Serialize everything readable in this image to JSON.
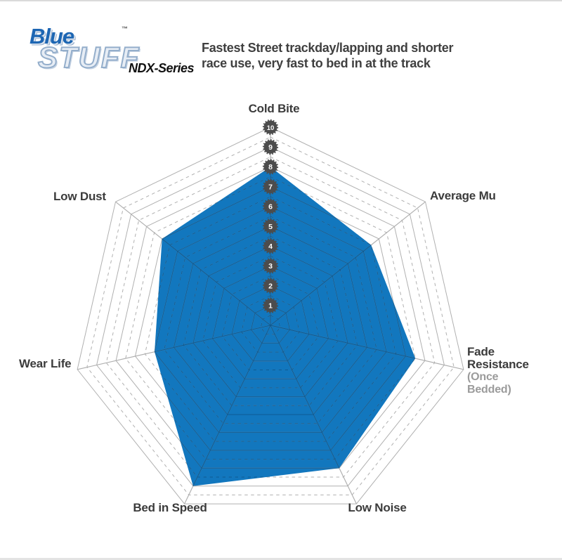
{
  "header": {
    "logo": {
      "word1": "Blue",
      "tm": "™",
      "word2": "STUFF",
      "series": "NDX-Series"
    },
    "description_line1": "Fastest Street trackday/lapping and shorter",
    "description_line2": "race use, very fast to bed in at the track"
  },
  "chart_data": {
    "type": "radar",
    "axes": [
      {
        "label": "Cold Bite",
        "value": 8
      },
      {
        "label": "Average Mu",
        "value": 6.5
      },
      {
        "label": "Fade Resistance",
        "sublabel": "(Once Bedded)",
        "value": 7.5
      },
      {
        "label": "Low Noise",
        "value": 8
      },
      {
        "label": "Bed in Speed",
        "value": 9
      },
      {
        "label": "Wear Life",
        "value": 6
      },
      {
        "label": "Low Dust",
        "value": 7
      }
    ],
    "scale": {
      "min": 0,
      "max": 10,
      "ring_labels": [
        10,
        9,
        8,
        7,
        6,
        5,
        4,
        3,
        2,
        1
      ],
      "solid_rings_every": 1,
      "dashed_half_rings": true,
      "legend_position": "none",
      "grid": "on"
    },
    "colors": {
      "fill": "#1277be",
      "grid": "#b0b0b0",
      "grid_inside_fill": "#0d5b94",
      "badge_bg": "#4c4c4c",
      "badge_text": "#ffffff"
    }
  }
}
